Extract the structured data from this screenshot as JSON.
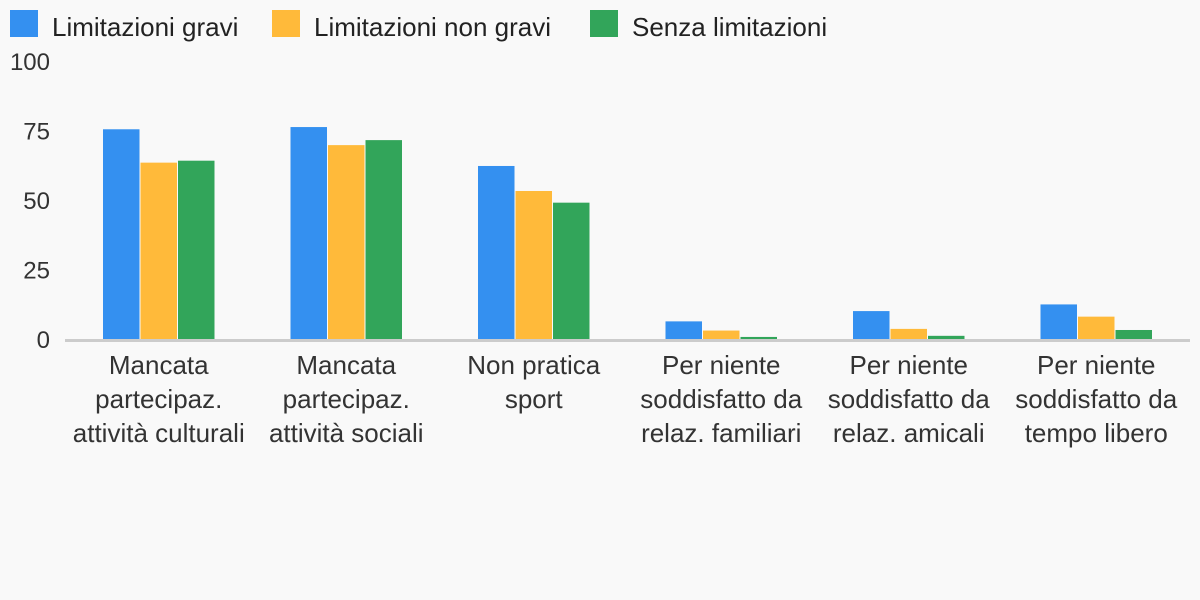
{
  "chart_data": {
    "type": "bar",
    "title": "",
    "xlabel": "",
    "ylabel": "",
    "ylim": [
      0,
      100
    ],
    "yticks": [
      0,
      25,
      50,
      75,
      100
    ],
    "grid": false,
    "legend_position": "top-left",
    "categories": [
      [
        "Mancata",
        "partecipaz.",
        "attività culturali"
      ],
      [
        "Mancata",
        "partecipaz.",
        "attività sociali"
      ],
      [
        "Non pratica",
        "sport"
      ],
      [
        "Per niente",
        "soddisfatto da",
        "relaz. familiari"
      ],
      [
        "Per niente",
        "soddisfatto da",
        "relaz. amicali"
      ],
      [
        "Per niente",
        "soddisfatto da",
        "tempo libero"
      ]
    ],
    "series": [
      {
        "name": "Limitazioni gravi",
        "color": "#3490f0",
        "values": [
          75.8,
          76.6,
          62.6,
          6.7,
          10.4,
          12.8
        ]
      },
      {
        "name": "Limitazioni non gravi",
        "color": "#ffba3a",
        "values": [
          63.8,
          70.1,
          53.6,
          3.4,
          4.0,
          8.4
        ]
      },
      {
        "name": "Senza limitazioni",
        "color": "#32a55a",
        "values": [
          64.5,
          71.9,
          49.4,
          1.1,
          1.5,
          3.6
        ]
      }
    ]
  }
}
